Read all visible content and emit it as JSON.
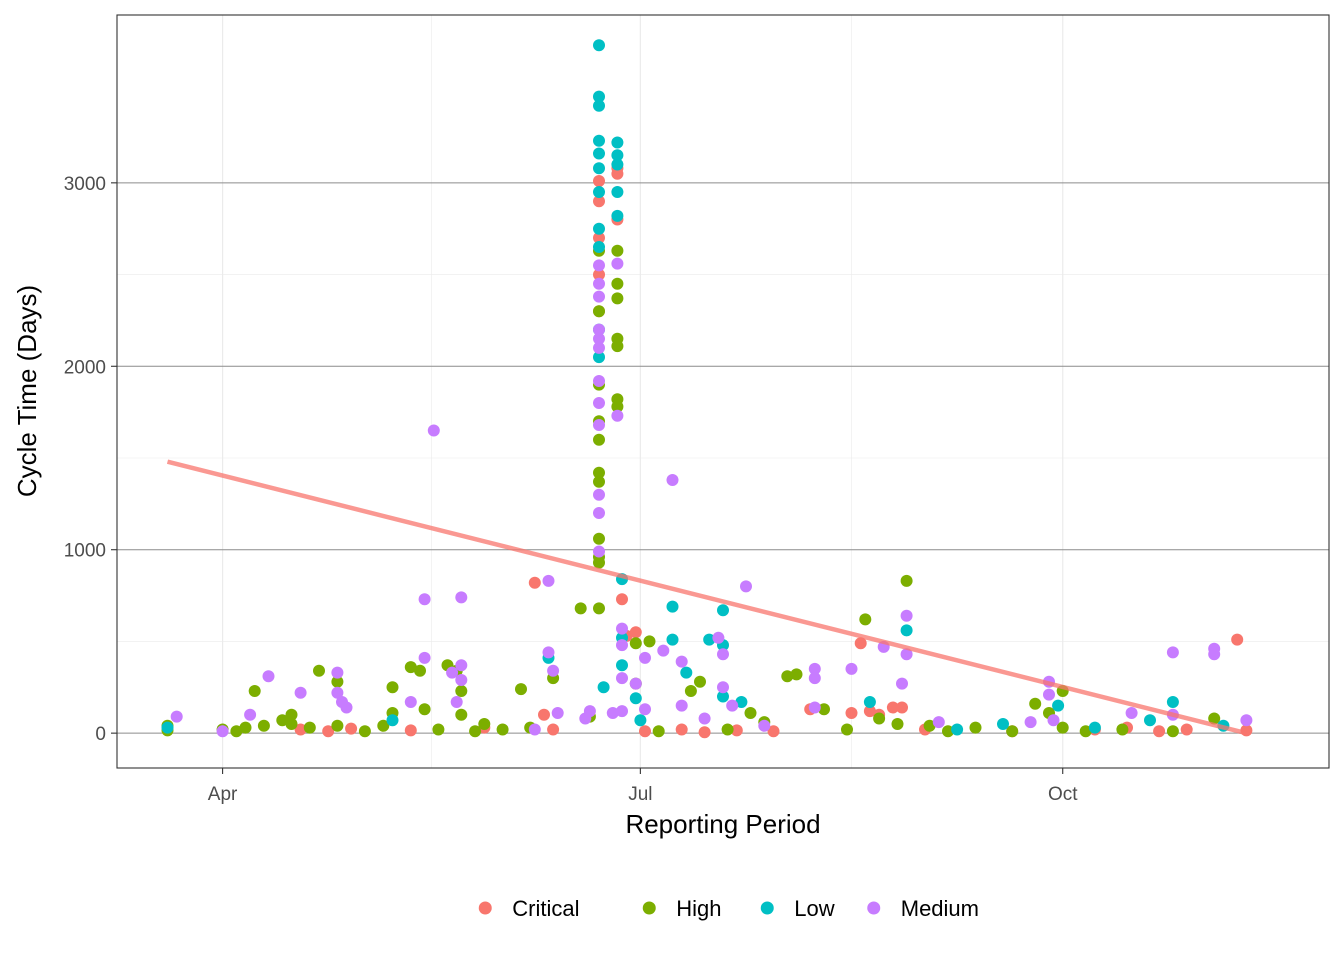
{
  "chart_data": {
    "type": "scatter",
    "title": "",
    "xlabel": "Reporting Period",
    "ylabel": "Cycle Time (Days)",
    "x_ticks": [
      "Apr",
      "Jul",
      "Oct"
    ],
    "x_tick_dates": [
      "2021-04-01",
      "2021-07-01",
      "2021-10-01"
    ],
    "xlim": [
      "2021-03-09",
      "2021-11-28"
    ],
    "ylim": [
      -190,
      3915
    ],
    "y_ticks": [
      0,
      1000,
      2000,
      3000
    ],
    "y_tick_labels": [
      "0",
      "1000",
      "2000",
      "3000"
    ],
    "grid": true,
    "legend_position": "bottom",
    "series": [
      {
        "name": "Critical",
        "color": "#F8766D",
        "points": [
          [
            "2021-04-18",
            20
          ],
          [
            "2021-04-24",
            10
          ],
          [
            "2021-04-29",
            25
          ],
          [
            "2021-05-12",
            15
          ],
          [
            "2021-05-28",
            30
          ],
          [
            "2021-06-08",
            820
          ],
          [
            "2021-06-10",
            100
          ],
          [
            "2021-06-12",
            20
          ],
          [
            "2021-06-22",
            3010
          ],
          [
            "2021-06-22",
            2900
          ],
          [
            "2021-06-22",
            2700
          ],
          [
            "2021-06-22",
            2500
          ],
          [
            "2021-06-22",
            2300
          ],
          [
            "2021-06-26",
            3080
          ],
          [
            "2021-06-26",
            3050
          ],
          [
            "2021-06-26",
            2800
          ],
          [
            "2021-06-27",
            730
          ],
          [
            "2021-06-28",
            530
          ],
          [
            "2021-06-30",
            550
          ],
          [
            "2021-07-02",
            10
          ],
          [
            "2021-07-10",
            20
          ],
          [
            "2021-07-15",
            5
          ],
          [
            "2021-07-22",
            15
          ],
          [
            "2021-07-30",
            10
          ],
          [
            "2021-08-07",
            130
          ],
          [
            "2021-08-16",
            110
          ],
          [
            "2021-08-18",
            490
          ],
          [
            "2021-08-20",
            120
          ],
          [
            "2021-08-22",
            100
          ],
          [
            "2021-08-25",
            140
          ],
          [
            "2021-08-27",
            140
          ],
          [
            "2021-09-01",
            20
          ],
          [
            "2021-09-20",
            10
          ],
          [
            "2021-10-08",
            20
          ],
          [
            "2021-10-15",
            30
          ],
          [
            "2021-10-22",
            10
          ],
          [
            "2021-10-28",
            20
          ],
          [
            "2021-11-08",
            510
          ],
          [
            "2021-11-10",
            15
          ]
        ]
      },
      {
        "name": "High",
        "color": "#7CAE00",
        "points": [
          [
            "2021-03-20",
            15
          ],
          [
            "2021-03-20",
            40
          ],
          [
            "2021-04-01",
            20
          ],
          [
            "2021-04-04",
            10
          ],
          [
            "2021-04-06",
            30
          ],
          [
            "2021-04-08",
            230
          ],
          [
            "2021-04-10",
            40
          ],
          [
            "2021-04-14",
            70
          ],
          [
            "2021-04-16",
            100
          ],
          [
            "2021-04-16",
            50
          ],
          [
            "2021-04-20",
            30
          ],
          [
            "2021-04-22",
            340
          ],
          [
            "2021-04-26",
            280
          ],
          [
            "2021-04-26",
            40
          ],
          [
            "2021-05-02",
            10
          ],
          [
            "2021-05-06",
            40
          ],
          [
            "2021-05-08",
            250
          ],
          [
            "2021-05-08",
            110
          ],
          [
            "2021-05-12",
            360
          ],
          [
            "2021-05-14",
            340
          ],
          [
            "2021-05-15",
            130
          ],
          [
            "2021-05-18",
            20
          ],
          [
            "2021-05-20",
            370
          ],
          [
            "2021-05-22",
            340
          ],
          [
            "2021-05-23",
            230
          ],
          [
            "2021-05-23",
            100
          ],
          [
            "2021-05-26",
            10
          ],
          [
            "2021-05-28",
            50
          ],
          [
            "2021-06-01",
            20
          ],
          [
            "2021-06-05",
            240
          ],
          [
            "2021-06-07",
            30
          ],
          [
            "2021-06-12",
            300
          ],
          [
            "2021-06-18",
            680
          ],
          [
            "2021-06-20",
            90
          ],
          [
            "2021-06-22",
            2630
          ],
          [
            "2021-06-22",
            2300
          ],
          [
            "2021-06-22",
            1900
          ],
          [
            "2021-06-22",
            1700
          ],
          [
            "2021-06-22",
            1600
          ],
          [
            "2021-06-22",
            1420
          ],
          [
            "2021-06-22",
            1370
          ],
          [
            "2021-06-22",
            1060
          ],
          [
            "2021-06-22",
            960
          ],
          [
            "2021-06-22",
            930
          ],
          [
            "2021-06-22",
            680
          ],
          [
            "2021-06-26",
            2630
          ],
          [
            "2021-06-26",
            2450
          ],
          [
            "2021-06-26",
            2370
          ],
          [
            "2021-06-26",
            2150
          ],
          [
            "2021-06-26",
            2110
          ],
          [
            "2021-06-26",
            1820
          ],
          [
            "2021-06-26",
            1780
          ],
          [
            "2021-06-30",
            490
          ],
          [
            "2021-06-30",
            270
          ],
          [
            "2021-07-03",
            500
          ],
          [
            "2021-07-05",
            10
          ],
          [
            "2021-07-12",
            230
          ],
          [
            "2021-07-14",
            280
          ],
          [
            "2021-07-20",
            20
          ],
          [
            "2021-07-25",
            110
          ],
          [
            "2021-07-28",
            60
          ],
          [
            "2021-08-02",
            310
          ],
          [
            "2021-08-04",
            320
          ],
          [
            "2021-08-10",
            130
          ],
          [
            "2021-08-15",
            20
          ],
          [
            "2021-08-19",
            620
          ],
          [
            "2021-08-22",
            80
          ],
          [
            "2021-08-26",
            50
          ],
          [
            "2021-08-28",
            830
          ],
          [
            "2021-09-02",
            40
          ],
          [
            "2021-09-06",
            10
          ],
          [
            "2021-09-12",
            30
          ],
          [
            "2021-09-20",
            10
          ],
          [
            "2021-09-25",
            160
          ],
          [
            "2021-09-28",
            110
          ],
          [
            "2021-10-01",
            230
          ],
          [
            "2021-10-01",
            30
          ],
          [
            "2021-10-06",
            10
          ],
          [
            "2021-10-14",
            20
          ],
          [
            "2021-10-25",
            10
          ],
          [
            "2021-11-03",
            80
          ]
        ]
      },
      {
        "name": "Low",
        "color": "#00BFC4",
        "points": [
          [
            "2021-03-20",
            30
          ],
          [
            "2021-05-08",
            70
          ],
          [
            "2021-06-11",
            410
          ],
          [
            "2021-06-22",
            3750
          ],
          [
            "2021-06-22",
            3470
          ],
          [
            "2021-06-22",
            3420
          ],
          [
            "2021-06-22",
            3230
          ],
          [
            "2021-06-22",
            3160
          ],
          [
            "2021-06-22",
            3080
          ],
          [
            "2021-06-22",
            2950
          ],
          [
            "2021-06-22",
            2750
          ],
          [
            "2021-06-22",
            2650
          ],
          [
            "2021-06-22",
            2200
          ],
          [
            "2021-06-22",
            2050
          ],
          [
            "2021-06-23",
            250
          ],
          [
            "2021-06-26",
            3220
          ],
          [
            "2021-06-26",
            3150
          ],
          [
            "2021-06-26",
            3100
          ],
          [
            "2021-06-26",
            2950
          ],
          [
            "2021-06-26",
            2820
          ],
          [
            "2021-06-27",
            840
          ],
          [
            "2021-06-27",
            520
          ],
          [
            "2021-06-27",
            370
          ],
          [
            "2021-06-30",
            190
          ],
          [
            "2021-07-01",
            70
          ],
          [
            "2021-07-08",
            690
          ],
          [
            "2021-07-08",
            510
          ],
          [
            "2021-07-11",
            330
          ],
          [
            "2021-07-16",
            510
          ],
          [
            "2021-07-19",
            670
          ],
          [
            "2021-07-19",
            480
          ],
          [
            "2021-07-19",
            200
          ],
          [
            "2021-07-23",
            170
          ],
          [
            "2021-08-20",
            170
          ],
          [
            "2021-08-28",
            560
          ],
          [
            "2021-09-08",
            20
          ],
          [
            "2021-09-18",
            50
          ],
          [
            "2021-09-30",
            150
          ],
          [
            "2021-10-08",
            30
          ],
          [
            "2021-10-20",
            70
          ],
          [
            "2021-10-25",
            170
          ],
          [
            "2021-11-05",
            40
          ]
        ]
      },
      {
        "name": "Medium",
        "color": "#C77CFF",
        "points": [
          [
            "2021-03-22",
            90
          ],
          [
            "2021-04-01",
            10
          ],
          [
            "2021-04-07",
            100
          ],
          [
            "2021-04-11",
            310
          ],
          [
            "2021-04-18",
            220
          ],
          [
            "2021-04-26",
            330
          ],
          [
            "2021-04-26",
            220
          ],
          [
            "2021-04-27",
            170
          ],
          [
            "2021-04-28",
            140
          ],
          [
            "2021-05-12",
            170
          ],
          [
            "2021-05-15",
            730
          ],
          [
            "2021-05-15",
            410
          ],
          [
            "2021-05-17",
            1650
          ],
          [
            "2021-05-21",
            330
          ],
          [
            "2021-05-22",
            170
          ],
          [
            "2021-05-23",
            740
          ],
          [
            "2021-05-23",
            370
          ],
          [
            "2021-05-23",
            290
          ],
          [
            "2021-06-08",
            20
          ],
          [
            "2021-06-11",
            830
          ],
          [
            "2021-06-11",
            440
          ],
          [
            "2021-06-12",
            340
          ],
          [
            "2021-06-13",
            110
          ],
          [
            "2021-06-19",
            80
          ],
          [
            "2021-06-20",
            120
          ],
          [
            "2021-06-22",
            2550
          ],
          [
            "2021-06-22",
            2450
          ],
          [
            "2021-06-22",
            2380
          ],
          [
            "2021-06-22",
            2200
          ],
          [
            "2021-06-22",
            2150
          ],
          [
            "2021-06-22",
            2100
          ],
          [
            "2021-06-22",
            1920
          ],
          [
            "2021-06-22",
            1800
          ],
          [
            "2021-06-22",
            1680
          ],
          [
            "2021-06-22",
            1300
          ],
          [
            "2021-06-22",
            1200
          ],
          [
            "2021-06-22",
            990
          ],
          [
            "2021-06-25",
            110
          ],
          [
            "2021-06-26",
            2560
          ],
          [
            "2021-06-26",
            1730
          ],
          [
            "2021-06-27",
            570
          ],
          [
            "2021-06-27",
            480
          ],
          [
            "2021-06-27",
            300
          ],
          [
            "2021-06-27",
            120
          ],
          [
            "2021-06-30",
            270
          ],
          [
            "2021-07-02",
            410
          ],
          [
            "2021-07-02",
            130
          ],
          [
            "2021-07-06",
            450
          ],
          [
            "2021-07-08",
            1380
          ],
          [
            "2021-07-10",
            390
          ],
          [
            "2021-07-10",
            150
          ],
          [
            "2021-07-15",
            80
          ],
          [
            "2021-07-18",
            520
          ],
          [
            "2021-07-19",
            430
          ],
          [
            "2021-07-19",
            250
          ],
          [
            "2021-07-21",
            150
          ],
          [
            "2021-07-24",
            800
          ],
          [
            "2021-07-28",
            40
          ],
          [
            "2021-08-08",
            350
          ],
          [
            "2021-08-08",
            300
          ],
          [
            "2021-08-08",
            140
          ],
          [
            "2021-08-16",
            350
          ],
          [
            "2021-08-23",
            470
          ],
          [
            "2021-08-27",
            270
          ],
          [
            "2021-08-28",
            640
          ],
          [
            "2021-08-28",
            430
          ],
          [
            "2021-09-04",
            60
          ],
          [
            "2021-09-24",
            60
          ],
          [
            "2021-09-28",
            280
          ],
          [
            "2021-09-28",
            210
          ],
          [
            "2021-09-29",
            70
          ],
          [
            "2021-10-16",
            110
          ],
          [
            "2021-10-25",
            440
          ],
          [
            "2021-10-25",
            100
          ],
          [
            "2021-11-03",
            460
          ],
          [
            "2021-11-03",
            430
          ],
          [
            "2021-11-10",
            70
          ]
        ]
      }
    ],
    "trend_line": {
      "color": "#F8766D",
      "x": [
        "2021-03-20",
        "2021-11-10"
      ],
      "y": [
        1480,
        0
      ]
    }
  }
}
